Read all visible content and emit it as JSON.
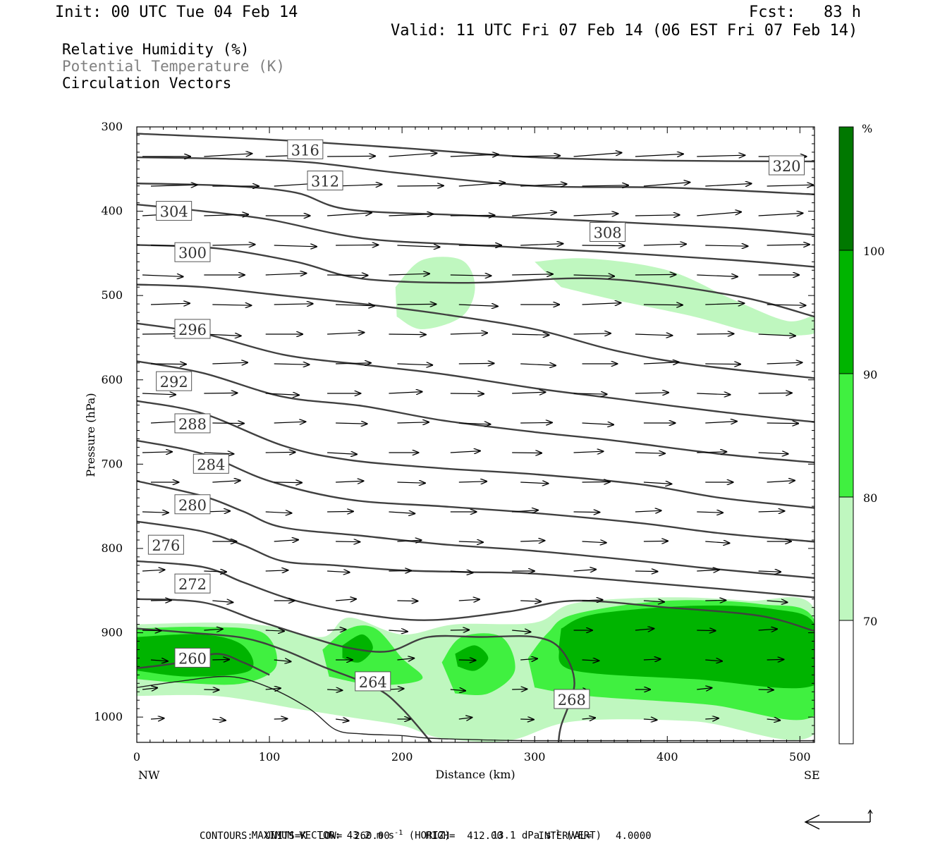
{
  "header": {
    "init": "Init: 00 UTC Tue 04 Feb 14",
    "fcst": "Fcst:   83 h",
    "valid": "Valid: 11 UTC Fri 07 Feb 14 (06 EST Fri 07 Feb 14)"
  },
  "legend_text": {
    "line1": "Relative Humidity (%)",
    "line2": "Potential Temperature (K)",
    "line3": "Circulation Vectors"
  },
  "footer": {
    "max_vector_label": "MAXIMUM VECTOR:",
    "horiz_value": "43.2 m s",
    "horiz_label": "(HORIZ)",
    "vert_value": "13.1 dPa s",
    "vert_label": "(VERT)",
    "exponent": "-1",
    "contours": "CONTOURS:  UNITS=K  LOW=  260.00      HIGH=  412.00      INTERVAL=    4.0000"
  },
  "colors": {
    "rh70": "#bff7bf",
    "rh80": "#40f040",
    "rh90": "#00b400",
    "rh100": "#007800",
    "theta_line": "#404040"
  },
  "chart_data": {
    "type": "cross-section",
    "xlabel": "Distance (km)",
    "ylabel": "Pressure (hPa)",
    "x_ticks": [
      "0",
      "100",
      "200",
      "300",
      "400",
      "500"
    ],
    "x_tick_values": [
      0,
      100,
      200,
      300,
      400,
      500
    ],
    "x_end_labels": {
      "left": "NW",
      "right": "SE"
    },
    "xlim": [
      0,
      511
    ],
    "y_ticks": [
      "300",
      "400",
      "500",
      "600",
      "700",
      "800",
      "900",
      "1000"
    ],
    "y_tick_values": [
      300,
      400,
      500,
      600,
      700,
      800,
      900,
      1000
    ],
    "ylim": [
      300,
      1030
    ],
    "colorbar": {
      "unit": "%",
      "levels": [
        "70",
        "80",
        "90",
        "100"
      ],
      "level_values": [
        70,
        80,
        90,
        100
      ]
    },
    "theta_contours": [
      {
        "value": 320,
        "label": "320",
        "label_at": [
          490,
          346
        ],
        "points": [
          [
            0,
            308
          ],
          [
            100,
            315
          ],
          [
            200,
            325
          ],
          [
            300,
            336
          ],
          [
            400,
            340
          ],
          [
            511,
            341
          ]
        ]
      },
      {
        "value": 316,
        "label": "316",
        "label_at": [
          127,
          327
        ],
        "points": [
          [
            0,
            336
          ],
          [
            70,
            338
          ],
          [
            130,
            342
          ],
          [
            200,
            355
          ],
          [
            300,
            370
          ],
          [
            400,
            372
          ],
          [
            511,
            380
          ]
        ]
      },
      {
        "value": 312,
        "label": "312",
        "label_at": [
          142,
          364
        ],
        "points": [
          [
            0,
            367
          ],
          [
            70,
            370
          ],
          [
            120,
            378
          ],
          [
            160,
            398
          ],
          [
            250,
            405
          ],
          [
            350,
            412
          ],
          [
            450,
            420
          ],
          [
            511,
            428
          ]
        ]
      },
      {
        "value": 308,
        "label": "308",
        "label_at": [
          355,
          425
        ],
        "points": [
          [
            0,
            392
          ],
          [
            50,
            400
          ],
          [
            100,
            410
          ],
          [
            170,
            432
          ],
          [
            250,
            440
          ],
          [
            350,
            448
          ],
          [
            450,
            458
          ],
          [
            511,
            466
          ]
        ]
      },
      {
        "value": 304,
        "label": "304",
        "label_at": [
          28,
          400
        ],
        "points": [
          [
            0,
            440
          ],
          [
            60,
            444
          ],
          [
            120,
            460
          ],
          [
            170,
            480
          ],
          [
            250,
            485
          ],
          [
            350,
            480
          ],
          [
            450,
            500
          ],
          [
            511,
            525
          ]
        ]
      },
      {
        "value": 300,
        "label": "300",
        "label_at": [
          42,
          449
        ],
        "points": [
          [
            0,
            487
          ],
          [
            50,
            490
          ],
          [
            110,
            500
          ],
          [
            170,
            510
          ],
          [
            230,
            522
          ],
          [
            300,
            540
          ],
          [
            360,
            565
          ],
          [
            420,
            582
          ],
          [
            511,
            598
          ]
        ]
      },
      {
        "value": 296,
        "label": "296",
        "label_at": [
          42,
          540
        ],
        "points": [
          [
            0,
            533
          ],
          [
            50,
            545
          ],
          [
            110,
            570
          ],
          [
            170,
            582
          ],
          [
            230,
            593
          ],
          [
            300,
            610
          ],
          [
            360,
            622
          ],
          [
            440,
            638
          ],
          [
            511,
            650
          ]
        ]
      },
      {
        "value": 292,
        "label": "292",
        "label_at": [
          28,
          602
        ],
        "points": [
          [
            0,
            578
          ],
          [
            50,
            592
          ],
          [
            110,
            620
          ],
          [
            170,
            631
          ],
          [
            230,
            648
          ],
          [
            300,
            662
          ],
          [
            360,
            672
          ],
          [
            440,
            688
          ],
          [
            511,
            698
          ]
        ]
      },
      {
        "value": 288,
        "label": "288",
        "label_at": [
          42,
          652
        ],
        "points": [
          [
            0,
            625
          ],
          [
            50,
            640
          ],
          [
            110,
            678
          ],
          [
            160,
            695
          ],
          [
            230,
            705
          ],
          [
            300,
            712
          ],
          [
            380,
            724
          ],
          [
            440,
            740
          ],
          [
            511,
            752
          ]
        ]
      },
      {
        "value": 284,
        "label": "284",
        "label_at": [
          56,
          700
        ],
        "points": [
          [
            0,
            672
          ],
          [
            50,
            688
          ],
          [
            100,
            720
          ],
          [
            160,
            742
          ],
          [
            230,
            750
          ],
          [
            300,
            758
          ],
          [
            380,
            770
          ],
          [
            440,
            782
          ],
          [
            511,
            792
          ]
        ]
      },
      {
        "value": 280,
        "label": "280",
        "label_at": [
          42,
          748
        ],
        "points": [
          [
            0,
            720
          ],
          [
            50,
            738
          ],
          [
            80,
            756
          ],
          [
            110,
            775
          ],
          [
            170,
            785
          ],
          [
            230,
            795
          ],
          [
            300,
            803
          ],
          [
            380,
            815
          ],
          [
            440,
            825
          ],
          [
            511,
            835
          ]
        ]
      },
      {
        "value": 276,
        "label": "276",
        "label_at": [
          22,
          796
        ],
        "points": [
          [
            0,
            768
          ],
          [
            50,
            780
          ],
          [
            80,
            796
          ],
          [
            110,
            815
          ],
          [
            150,
            820
          ],
          [
            200,
            826
          ],
          [
            250,
            828
          ],
          [
            300,
            830
          ],
          [
            380,
            840
          ],
          [
            440,
            848
          ],
          [
            511,
            858
          ]
        ]
      },
      {
        "value": 272,
        "label": "272",
        "label_at": [
          42,
          842
        ],
        "points": [
          [
            0,
            815
          ],
          [
            50,
            822
          ],
          [
            80,
            840
          ],
          [
            120,
            862
          ],
          [
            170,
            878
          ],
          [
            220,
            885
          ],
          [
            280,
            875
          ],
          [
            330,
            862
          ],
          [
            400,
            870
          ],
          [
            470,
            880
          ],
          [
            511,
            898
          ]
        ]
      },
      {
        "value": 268,
        "label": "268",
        "label_at": [
          328,
          979
        ],
        "points": [
          [
            0,
            860
          ],
          [
            50,
            864
          ],
          [
            90,
            885
          ],
          [
            130,
            905
          ],
          [
            160,
            918
          ],
          [
            190,
            922
          ],
          [
            220,
            905
          ],
          [
            260,
            905
          ],
          [
            300,
            905
          ],
          [
            320,
            920
          ],
          [
            330,
            960
          ],
          [
            320,
            1010
          ],
          [
            318,
            1030
          ]
        ]
      },
      {
        "value": 264,
        "label": "264",
        "label_at": [
          178,
          958
        ],
        "points": [
          [
            0,
            895
          ],
          [
            40,
            900
          ],
          [
            80,
            906
          ],
          [
            110,
            920
          ],
          [
            140,
            940
          ],
          [
            180,
            965
          ],
          [
            200,
            990
          ],
          [
            222,
            1030
          ]
        ]
      },
      {
        "value": 260,
        "label": "260",
        "label_at": [
          42,
          930
        ],
        "points": [
          [
            0,
            942
          ],
          [
            30,
            936
          ],
          [
            60,
            925
          ],
          [
            80,
            935
          ],
          [
            100,
            950
          ]
        ]
      }
    ],
    "rh_max_region_percent": 100
  }
}
